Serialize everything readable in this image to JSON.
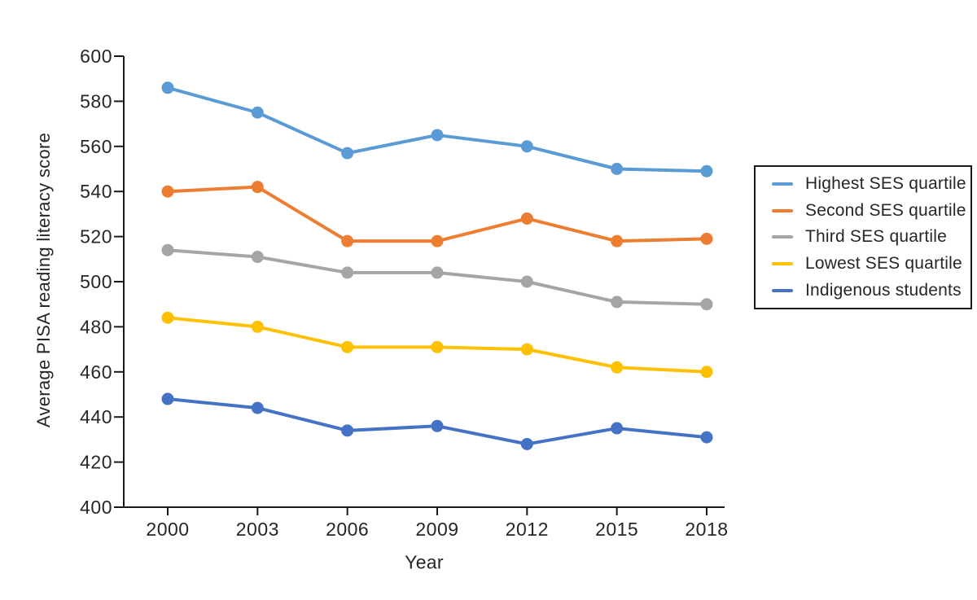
{
  "chart_data": {
    "type": "line",
    "title": "",
    "xlabel": "Year",
    "ylabel": "Average PISA reading literacy score",
    "categories": [
      2000,
      2003,
      2006,
      2009,
      2012,
      2015,
      2018
    ],
    "yticks": [
      400,
      420,
      440,
      460,
      480,
      500,
      520,
      540,
      560,
      580,
      600
    ],
    "ylim": [
      400,
      600
    ],
    "grid": false,
    "legend_position": "right",
    "axis_color": "#1a1a1a",
    "text_color": "#262626",
    "series": [
      {
        "name": "Highest SES quartile",
        "color": "#5B9BD5",
        "values": [
          586,
          575,
          557,
          565,
          560,
          550,
          549
        ]
      },
      {
        "name": "Second SES quartile",
        "color": "#ED7D31",
        "values": [
          540,
          542,
          518,
          518,
          528,
          518,
          519
        ]
      },
      {
        "name": "Third SES quartile",
        "color": "#A5A5A5",
        "values": [
          514,
          511,
          504,
          504,
          500,
          491,
          490
        ]
      },
      {
        "name": "Lowest SES quartile",
        "color": "#FFC000",
        "values": [
          484,
          480,
          471,
          471,
          470,
          462,
          460
        ]
      },
      {
        "name": "Indigenous students",
        "color": "#4472C4",
        "values": [
          448,
          444,
          434,
          436,
          428,
          435,
          431
        ]
      }
    ]
  }
}
